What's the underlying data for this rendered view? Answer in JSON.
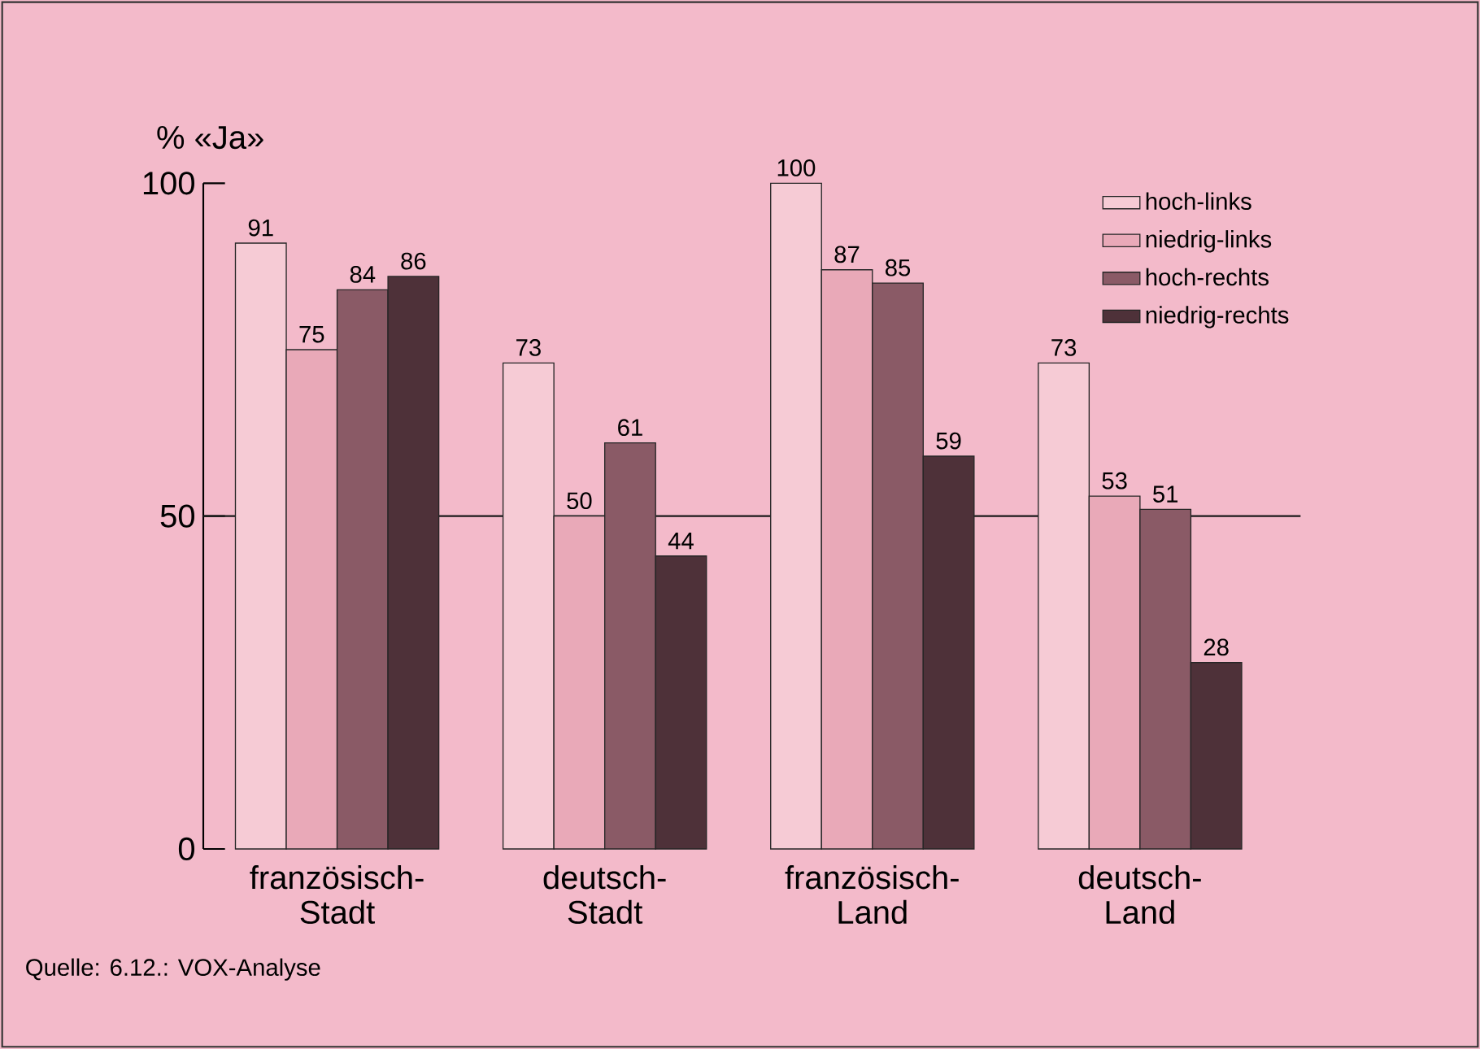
{
  "chart_data": {
    "type": "bar",
    "ylabel": "% «Ja»",
    "categories": [
      "französisch-\nStadt",
      "deutsch-\nStadt",
      "französisch-\nLand",
      "deutsch-\nLand"
    ],
    "series": [
      {
        "name": "hoch-links",
        "color": "#f6cbd5",
        "values": [
          91,
          73,
          100,
          73
        ],
        "value_labels": [
          "91",
          "73",
          "100",
          "73"
        ]
      },
      {
        "name": "niedrig-links",
        "color": "#e9a9b8",
        "values": [
          75,
          50,
          87,
          53
        ],
        "value_labels": [
          "75",
          "50",
          "87",
          "53"
        ]
      },
      {
        "name": "hoch-rechts",
        "color": "#8a5a66",
        "values": [
          84,
          61,
          85,
          51
        ],
        "value_labels": [
          "84",
          "61",
          "85",
          "51"
        ]
      },
      {
        "name": "niedrig-rechts",
        "color": "#4e3139",
        "values": [
          86,
          44,
          59,
          28
        ],
        "value_labels": [
          "86",
          "44",
          "59",
          "28"
        ]
      }
    ],
    "ylim": [
      0,
      100
    ],
    "yticks": [
      0,
      50,
      100
    ],
    "grid": false,
    "legend": "top right",
    "ref_lines": [
      {
        "axis": "y",
        "value": 50,
        "color": "#1a1a1a"
      }
    ],
    "annotations": [
      "Quelle: 6.12.: VOX-Analyse"
    ]
  }
}
